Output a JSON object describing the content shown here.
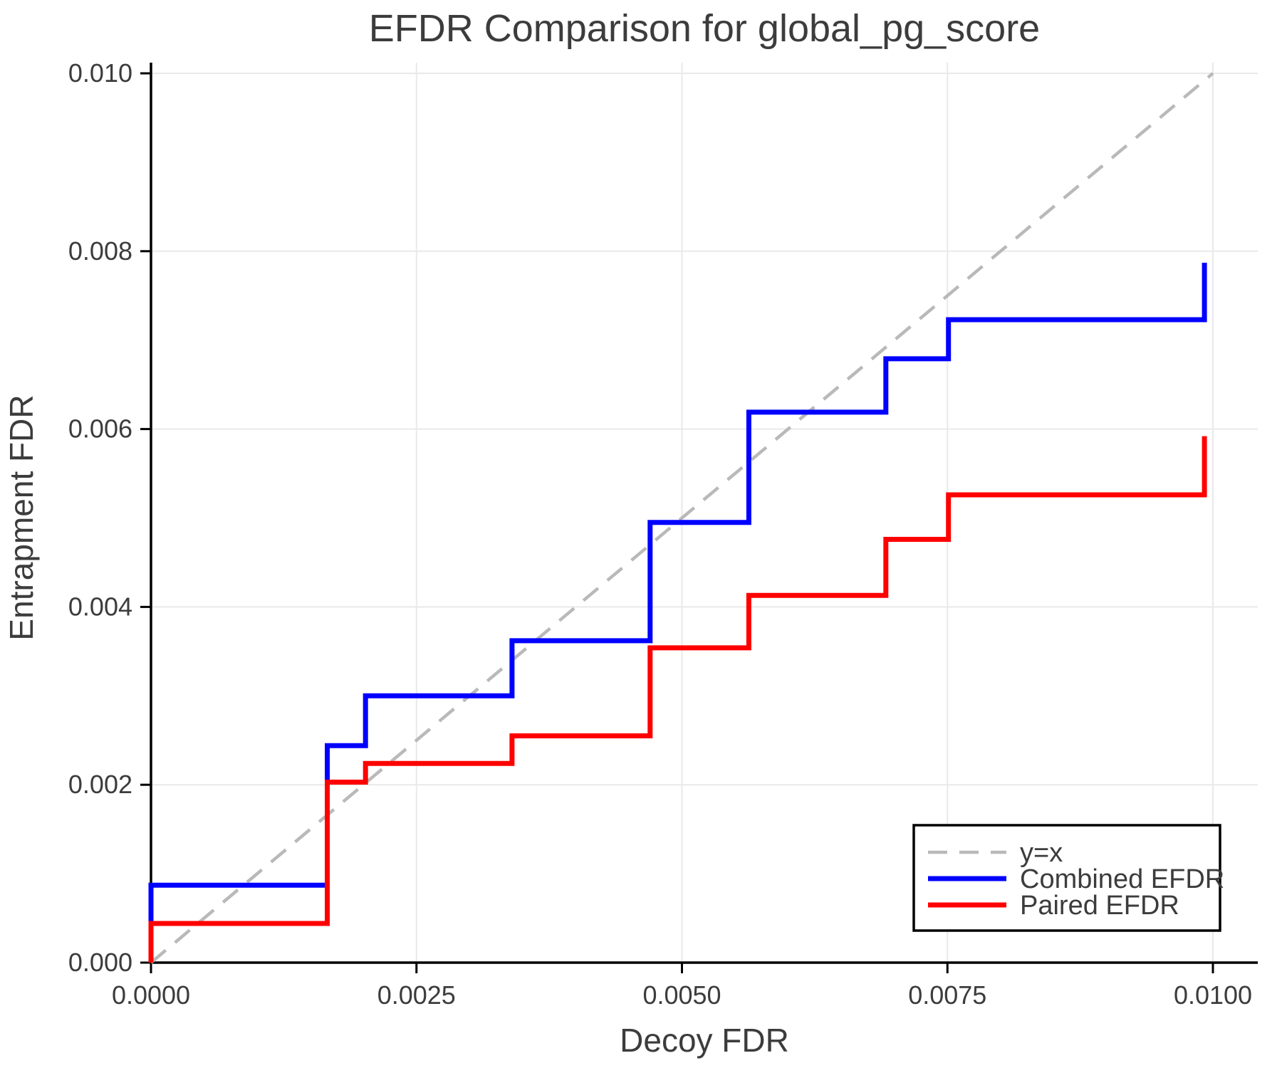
{
  "title": "EFDR Comparison for global_pg_score",
  "colors": {
    "combined": "#0000ff",
    "paired": "#ff0000",
    "identity": "#b9b9b9",
    "grid": "#e9e9e9",
    "spine": "#000000",
    "text": "#3c3c3c",
    "legend_border": "#000000",
    "background": "#ffffff"
  },
  "legend": {
    "items": [
      {
        "label": "y=x",
        "color": "#b9b9b9",
        "dashed": true
      },
      {
        "label": "Combined EFDR",
        "color": "#0000ff",
        "dashed": false
      },
      {
        "label": "Paired EFDR",
        "color": "#ff0000",
        "dashed": false
      }
    ]
  },
  "chart_data": {
    "type": "line",
    "title": "EFDR Comparison for global_pg_score",
    "xlabel": "Decoy FDR",
    "ylabel": "Entrapment FDR",
    "xlim": [
      0.0,
      0.0104
    ],
    "ylim": [
      0.0,
      0.0101
    ],
    "grid": true,
    "legend_position": "lower right",
    "x_ticks": {
      "values": [
        0.0,
        0.0025,
        0.005,
        0.0075,
        0.01
      ],
      "labels": [
        "0.0000",
        "0.0025",
        "0.0050",
        "0.0075",
        "0.0100"
      ]
    },
    "y_ticks": {
      "values": [
        0.0,
        0.002,
        0.004,
        0.006,
        0.008,
        0.01
      ],
      "labels": [
        "0.000",
        "0.002",
        "0.004",
        "0.006",
        "0.008",
        "0.010"
      ]
    },
    "step_x_thresholds": [
      0.0,
      0.00166,
      0.00202,
      0.0034,
      0.0047,
      0.00563,
      0.00692,
      0.00751,
      0.00992
    ],
    "series": [
      {
        "name": "y=x",
        "style": "dashed",
        "color": "#b9b9b9",
        "width": 4.5,
        "points": [
          [
            0.0,
            0.0
          ],
          [
            0.01,
            0.01
          ]
        ]
      },
      {
        "name": "Combined EFDR",
        "style": "solid",
        "color": "#0000ff",
        "width": 7,
        "points": [
          [
            0.0,
            0.0
          ],
          [
            0.0,
            0.00087
          ],
          [
            0.00166,
            0.00087
          ],
          [
            0.00166,
            0.00244
          ],
          [
            0.00202,
            0.00244
          ],
          [
            0.00202,
            0.003
          ],
          [
            0.0034,
            0.003
          ],
          [
            0.0034,
            0.00362
          ],
          [
            0.0047,
            0.00362
          ],
          [
            0.0047,
            0.00495
          ],
          [
            0.00563,
            0.00495
          ],
          [
            0.00563,
            0.00619
          ],
          [
            0.00692,
            0.00619
          ],
          [
            0.00692,
            0.00679
          ],
          [
            0.00751,
            0.00679
          ],
          [
            0.00751,
            0.00723
          ],
          [
            0.00992,
            0.00723
          ],
          [
            0.00992,
            0.00787
          ]
        ]
      },
      {
        "name": "Paired EFDR",
        "style": "solid",
        "color": "#ff0000",
        "width": 7,
        "points": [
          [
            0.0,
            0.0
          ],
          [
            0.0,
            0.00044
          ],
          [
            0.00166,
            0.00044
          ],
          [
            0.00166,
            0.00203
          ],
          [
            0.00202,
            0.00203
          ],
          [
            0.00202,
            0.00224
          ],
          [
            0.0034,
            0.00224
          ],
          [
            0.0034,
            0.00255
          ],
          [
            0.0047,
            0.00255
          ],
          [
            0.0047,
            0.00354
          ],
          [
            0.00563,
            0.00354
          ],
          [
            0.00563,
            0.00413
          ],
          [
            0.00692,
            0.00413
          ],
          [
            0.00692,
            0.00476
          ],
          [
            0.00751,
            0.00476
          ],
          [
            0.00751,
            0.00526
          ],
          [
            0.00992,
            0.00526
          ],
          [
            0.00992,
            0.00592
          ]
        ]
      }
    ]
  }
}
